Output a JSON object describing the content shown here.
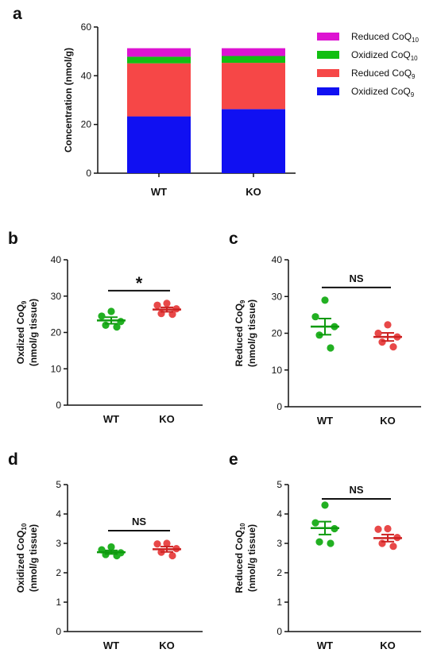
{
  "colors": {
    "reduced_coq10": "#dd14d2",
    "oxidized_coq10": "#12bf12",
    "reduced_coq9": "#f64747",
    "oxidized_coq9": "#1010f2",
    "wt_dots": "#22b022",
    "ko_dots": "#e84848",
    "wt_line": "#0e9a0e",
    "ko_line": "#cc2222"
  },
  "chart_data": [
    {
      "panel": "a",
      "type": "bar",
      "stacked": true,
      "categories": [
        "WT",
        "KO"
      ],
      "ylabel": "Concentration (nmol/g)",
      "ylim": [
        0,
        60
      ],
      "yticks": [
        0,
        20,
        40,
        60
      ],
      "legend": [
        {
          "name": "Reduced CoQ",
          "sub": "10",
          "color_key": "reduced_coq10"
        },
        {
          "name": "Oxidized CoQ",
          "sub": "10",
          "color_key": "oxidized_coq10"
        },
        {
          "name": "Reduced CoQ",
          "sub": "9",
          "color_key": "reduced_coq9"
        },
        {
          "name": "Oxidized CoQ",
          "sub": "9",
          "color_key": "oxidized_coq9"
        }
      ],
      "legend_position": "right",
      "series": [
        {
          "name": "Oxidized CoQ9",
          "color_key": "oxidized_coq9",
          "values": [
            23.3,
            26.3
          ]
        },
        {
          "name": "Reduced CoQ9",
          "color_key": "reduced_coq9",
          "values": [
            21.8,
            19.0
          ]
        },
        {
          "name": "Oxidized CoQ10",
          "color_key": "oxidized_coq10",
          "values": [
            2.7,
            2.8
          ]
        },
        {
          "name": "Reduced CoQ10",
          "color_key": "reduced_coq10",
          "values": [
            3.5,
            3.2
          ]
        }
      ]
    },
    {
      "panel": "b",
      "type": "scatter",
      "categories": [
        "WT",
        "KO"
      ],
      "ylabel_line1": "Oxdized CoQ",
      "ylabel_sub": "9",
      "ylabel_line2": "(nmol/g tissue)",
      "ylim": [
        0,
        40
      ],
      "yticks": [
        0,
        10,
        20,
        30,
        40
      ],
      "significance": "*",
      "groups": [
        {
          "category": "WT",
          "points": [
            25.8,
            24.5,
            23.0,
            22.0,
            21.5
          ],
          "mean": 23.3,
          "sem": 0.9
        },
        {
          "category": "KO",
          "points": [
            28.0,
            27.5,
            26.5,
            25.2,
            25.0
          ],
          "mean": 26.3,
          "sem": 0.6
        }
      ]
    },
    {
      "panel": "c",
      "type": "scatter",
      "categories": [
        "WT",
        "KO"
      ],
      "ylabel_line1": "Reduced CoQ",
      "ylabel_sub": "9",
      "ylabel_line2": "(nmol/g tissue)",
      "ylim": [
        0,
        40
      ],
      "yticks": [
        0,
        10,
        20,
        30,
        40
      ],
      "significance": "NS",
      "groups": [
        {
          "category": "WT",
          "points": [
            29.0,
            24.5,
            21.8,
            19.5,
            16.0
          ],
          "mean": 21.8,
          "sem": 2.2
        },
        {
          "category": "KO",
          "points": [
            22.3,
            20.0,
            19.0,
            17.6,
            16.3
          ],
          "mean": 19.0,
          "sem": 1.1
        }
      ]
    },
    {
      "panel": "d",
      "type": "scatter",
      "categories": [
        "WT",
        "KO"
      ],
      "ylabel_line1": "Oxidized CoQ",
      "ylabel_sub": "10",
      "ylabel_line2": "(nmol/g tissue)",
      "ylim": [
        0,
        5
      ],
      "yticks": [
        0,
        1,
        2,
        3,
        4,
        5
      ],
      "significance": "NS",
      "groups": [
        {
          "category": "WT",
          "points": [
            2.88,
            2.78,
            2.68,
            2.62,
            2.58
          ],
          "mean": 2.7,
          "sem": 0.06
        },
        {
          "category": "KO",
          "points": [
            3.0,
            2.98,
            2.82,
            2.7,
            2.58
          ],
          "mean": 2.8,
          "sem": 0.09
        }
      ]
    },
    {
      "panel": "e",
      "type": "scatter",
      "categories": [
        "WT",
        "KO"
      ],
      "ylabel_line1": "Reduced CoQ",
      "ylabel_sub": "10",
      "ylabel_line2": "(nmol/g tissue)",
      "ylim": [
        0,
        5
      ],
      "yticks": [
        0,
        1,
        2,
        3,
        4,
        5
      ],
      "significance": "NS",
      "groups": [
        {
          "category": "WT",
          "points": [
            4.3,
            3.7,
            3.5,
            3.05,
            3.0
          ],
          "mean": 3.52,
          "sem": 0.22
        },
        {
          "category": "KO",
          "points": [
            3.5,
            3.48,
            3.2,
            3.0,
            2.9
          ],
          "mean": 3.18,
          "sem": 0.12
        }
      ]
    }
  ]
}
